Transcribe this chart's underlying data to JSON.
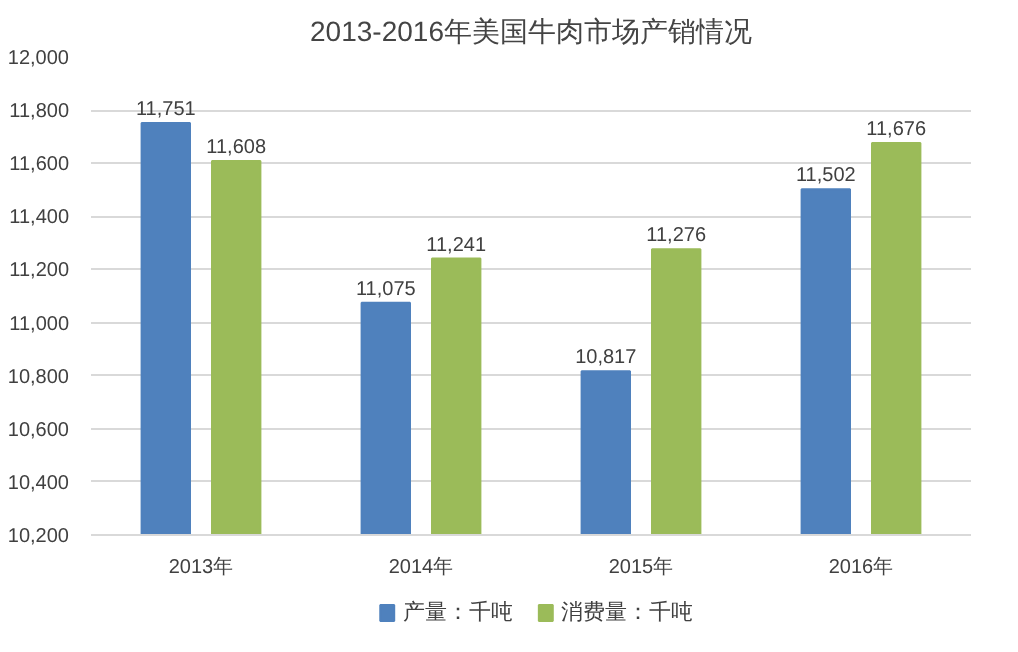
{
  "chart_data": {
    "type": "bar",
    "title": "2013-2016年美国牛肉市场产销情况",
    "categories": [
      "2013年",
      "2014年",
      "2015年",
      "2016年"
    ],
    "series": [
      {
        "name": "产量：千吨",
        "color": "#4f81bd",
        "values": [
          11751,
          11075,
          10817,
          11502
        ],
        "value_labels": [
          "11,751",
          "11,075",
          "10,817",
          "11,502"
        ]
      },
      {
        "name": "消费量：千吨",
        "color": "#9bbb59",
        "values": [
          11608,
          11241,
          11276,
          11676
        ],
        "value_labels": [
          "11,608",
          "11,241",
          "11,276",
          "11,676"
        ]
      }
    ],
    "ylim": [
      10200,
      12000
    ],
    "yticks": [
      {
        "value": 10200,
        "label": "10,200"
      },
      {
        "value": 10400,
        "label": "10,400"
      },
      {
        "value": 10600,
        "label": "10,600"
      },
      {
        "value": 10800,
        "label": "10,800"
      },
      {
        "value": 11000,
        "label": "11,000"
      },
      {
        "value": 11200,
        "label": "11,200"
      },
      {
        "value": 11400,
        "label": "11,400"
      },
      {
        "value": 11600,
        "label": "11,600"
      },
      {
        "value": 11800,
        "label": "11,800"
      },
      {
        "value": 12000,
        "label": "12,000"
      }
    ],
    "grid": "y",
    "legend": "bottom"
  }
}
